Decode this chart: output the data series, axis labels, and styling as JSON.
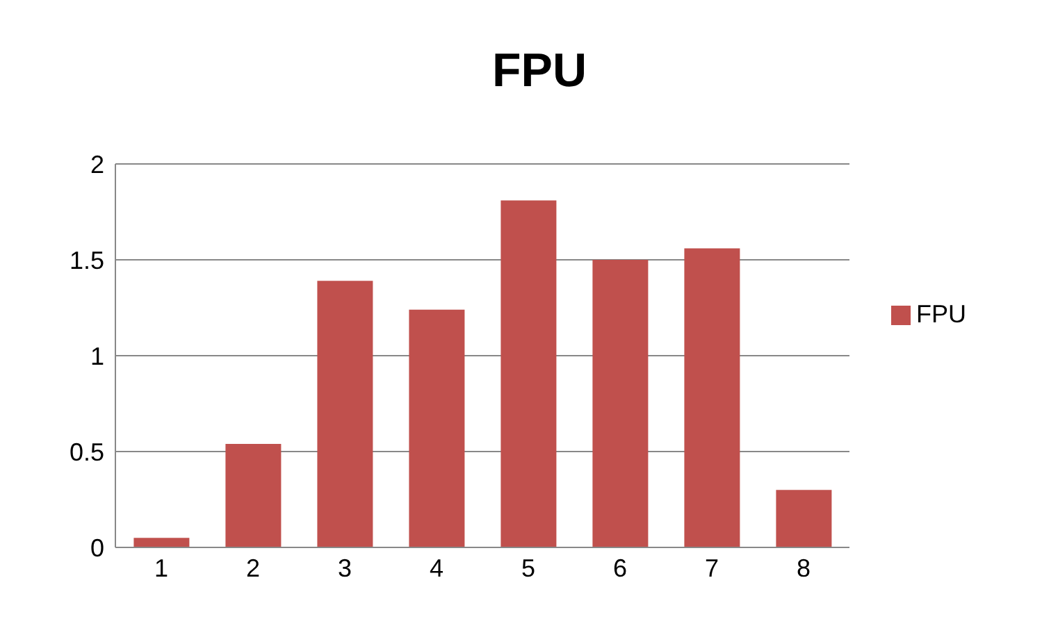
{
  "chart_data": {
    "type": "bar",
    "title": "FPU",
    "categories": [
      "1",
      "2",
      "3",
      "4",
      "5",
      "6",
      "7",
      "8"
    ],
    "series": [
      {
        "name": "FPU",
        "color": "#c0504d",
        "values": [
          0.05,
          0.54,
          1.39,
          1.24,
          1.81,
          1.5,
          1.56,
          0.3
        ]
      }
    ],
    "ylim": [
      0,
      2
    ],
    "yticks": [
      0,
      0.5,
      1,
      1.5,
      2
    ],
    "grid": "y",
    "legend": "right"
  }
}
